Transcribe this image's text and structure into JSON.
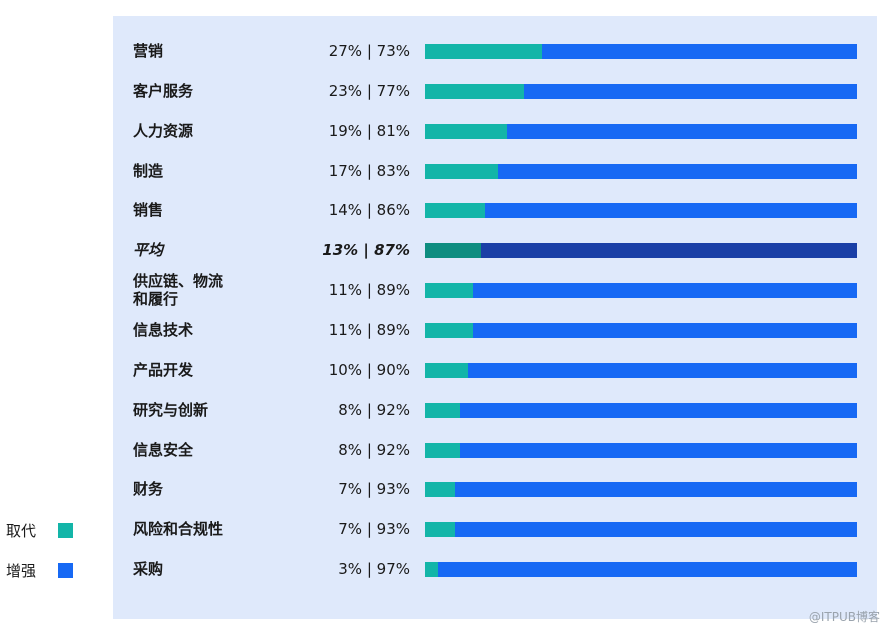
{
  "chart_data": {
    "type": "bar",
    "orientation": "horizontal-stacked-percent",
    "categories": [
      "营销",
      "客户服务",
      "人力资源",
      "制造",
      "销售",
      "平均",
      "供应链、物流\n和履行",
      "信息技术",
      "产品开发",
      "研究与创新",
      "信息安全",
      "财务",
      "风险和合规性",
      "采购"
    ],
    "value_labels": [
      "27% | 73%",
      "23% | 77%",
      "19% | 81%",
      "17% | 83%",
      "14% | 86%",
      "13% | 87%",
      "11% | 89%",
      "11% | 89%",
      "10% | 90%",
      "8% | 92%",
      "8% | 92%",
      "7% | 93%",
      "7% | 93%",
      "3% | 97%"
    ],
    "series": [
      {
        "name": "取代",
        "values": [
          27,
          23,
          19,
          17,
          14,
          13,
          11,
          11,
          10,
          8,
          8,
          7,
          7,
          3
        ]
      },
      {
        "name": "增强",
        "values": [
          73,
          77,
          81,
          83,
          86,
          87,
          89,
          89,
          90,
          92,
          92,
          93,
          93,
          97
        ]
      }
    ],
    "highlight_category": "平均",
    "xlim": [
      0,
      100
    ],
    "legend_position": "left"
  },
  "colors": {
    "replace": "#13b5a8",
    "augment": "#1769f4",
    "replace_avg": "#0e8d80",
    "augment_avg": "#1a3fa6",
    "panel": "#dfe9fb"
  },
  "watermark": "@ITPUB博客"
}
